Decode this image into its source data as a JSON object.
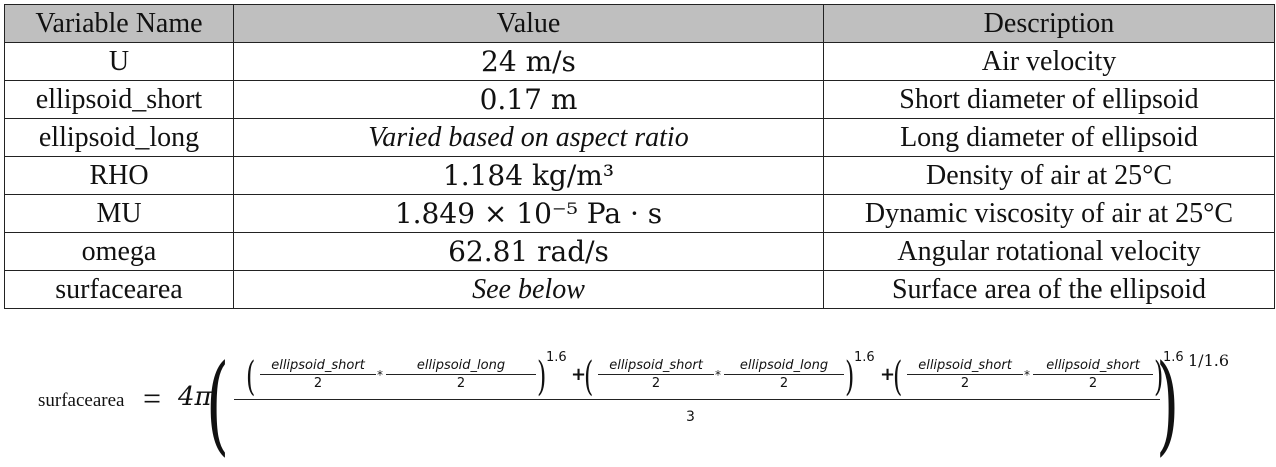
{
  "table": {
    "headers": [
      "Variable Name",
      "Value",
      "Description"
    ],
    "rows": [
      {
        "name": "U",
        "value": "24 m/s",
        "description": "Air velocity"
      },
      {
        "name": "ellipsoid_short",
        "value": "0.17 m",
        "description": "Short diameter of ellipsoid"
      },
      {
        "name": "ellipsoid_long",
        "value": "Varied based on aspect ratio",
        "description": "Long diameter of ellipsoid"
      },
      {
        "name": "RHO",
        "value": "1.184 kg/m³",
        "description": "Density of air at 25°C"
      },
      {
        "name": "MU",
        "value": "1.849 × 10⁻⁵ Pa · s",
        "description": "Dynamic viscosity of air at 25°C"
      },
      {
        "name": "omega",
        "value": "62.81 rad/s",
        "description": "Angular rotational velocity"
      },
      {
        "name": "surfacearea",
        "value": "See below",
        "description": "Surface area of the ellipsoid"
      }
    ]
  },
  "formula": {
    "lhs": "surfacearea",
    "equals": "=",
    "coefficient": "4π",
    "terms": [
      {
        "a": "ellipsoid_short",
        "b": "ellipsoid_long",
        "divisor": "2",
        "exponent": "1.6"
      },
      {
        "a": "ellipsoid_short",
        "b": "ellipsoid_long",
        "divisor": "2",
        "exponent": "1.6"
      },
      {
        "a": "ellipsoid_short",
        "b": "ellipsoid_short",
        "divisor": "2",
        "exponent": "1.6"
      }
    ],
    "operator_times": "*",
    "operator_plus": "+",
    "denominator": "3",
    "outer_exponent": "1/1.6"
  }
}
